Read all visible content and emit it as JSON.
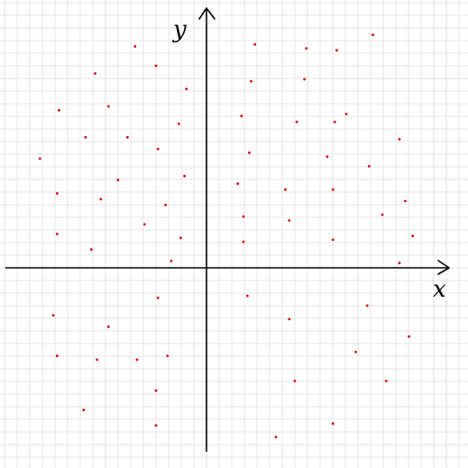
{
  "chart_data": {
    "type": "scatter",
    "title": "",
    "xlabel": "x",
    "ylabel": "y",
    "grid": true,
    "legend": "none",
    "xlim": [
      -11.1,
      13.5
    ],
    "ylim": [
      -10.1,
      14.1
    ],
    "series": [
      {
        "color": "#dd0000",
        "points": [
          [
            -4.0,
            11.7
          ],
          [
            -2.9,
            10.7
          ],
          [
            2.3,
            11.8
          ],
          [
            5.0,
            11.6
          ],
          [
            6.6,
            11.5
          ],
          [
            8.5,
            12.3
          ],
          [
            -6.1,
            10.3
          ],
          [
            -1.3,
            9.5
          ],
          [
            2.1,
            9.9
          ],
          [
            4.9,
            10.0
          ],
          [
            -8.0,
            8.4
          ],
          [
            -5.4,
            8.6
          ],
          [
            1.6,
            8.1
          ],
          [
            4.5,
            7.8
          ],
          [
            6.5,
            7.8
          ],
          [
            7.1,
            8.2
          ],
          [
            -1.7,
            7.7
          ],
          [
            -6.6,
            7.0
          ],
          [
            -4.4,
            7.0
          ],
          [
            -2.8,
            6.4
          ],
          [
            9.9,
            6.9
          ],
          [
            -9.0,
            5.9
          ],
          [
            2.0,
            6.2
          ],
          [
            6.1,
            6.0
          ],
          [
            8.3,
            5.5
          ],
          [
            -1.4,
            5.0
          ],
          [
            -4.9,
            4.8
          ],
          [
            1.4,
            4.6
          ],
          [
            6.4,
            4.3
          ],
          [
            3.9,
            4.3
          ],
          [
            -8.1,
            4.1
          ],
          [
            -5.8,
            3.8
          ],
          [
            -2.4,
            3.5
          ],
          [
            10.2,
            3.7
          ],
          [
            9.0,
            3.0
          ],
          [
            1.7,
            2.9
          ],
          [
            4.1,
            2.7
          ],
          [
            -3.5,
            2.5
          ],
          [
            -8.1,
            2.0
          ],
          [
            -6.3,
            1.2
          ],
          [
            -1.6,
            1.8
          ],
          [
            1.7,
            1.6
          ],
          [
            6.4,
            1.7
          ],
          [
            10.6,
            1.9
          ],
          [
            -2.1,
            0.6
          ],
          [
            9.9,
            0.5
          ],
          [
            -2.8,
            -1.3
          ],
          [
            1.9,
            -1.2
          ],
          [
            8.2,
            -1.7
          ],
          [
            -8.3,
            -2.2
          ],
          [
            -5.4,
            -2.8
          ],
          [
            4.1,
            -2.4
          ],
          [
            10.4,
            -3.3
          ],
          [
            -8.1,
            -4.3
          ],
          [
            -6.0,
            -4.5
          ],
          [
            -3.9,
            -4.5
          ],
          [
            -2.3,
            -4.3
          ],
          [
            7.6,
            -4.1
          ],
          [
            4.4,
            -5.6
          ],
          [
            9.2,
            -5.6
          ],
          [
            -2.9,
            -6.1
          ],
          [
            -6.7,
            -7.1
          ],
          [
            -2.9,
            -7.9
          ],
          [
            6.4,
            -7.8
          ],
          [
            3.4,
            -8.5
          ]
        ]
      }
    ]
  }
}
